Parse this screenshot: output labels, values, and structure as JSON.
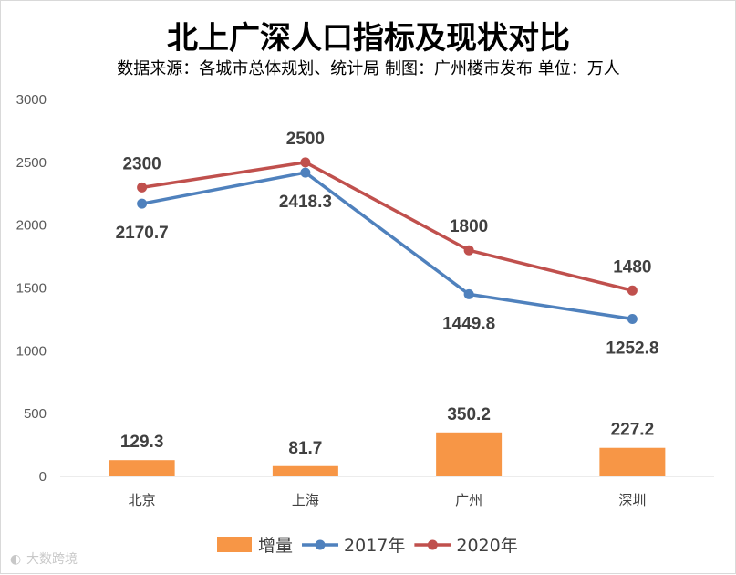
{
  "chart_data": {
    "type": "bar+line",
    "title": "北上广深人口指标及现状对比",
    "subtitle": "数据来源：各城市总体规划、统计局 制图：广州楼市发布 单位：万人",
    "categories": [
      "北京",
      "上海",
      "广州",
      "深圳"
    ],
    "ylim": [
      0,
      3000
    ],
    "yticks": [
      0,
      500,
      1000,
      1500,
      2000,
      2500,
      3000
    ],
    "grid": false,
    "legend_position": "bottom",
    "series": [
      {
        "name": "增量",
        "kind": "bar",
        "color": "#F79646",
        "values": [
          129.3,
          81.7,
          350.2,
          227.2
        ],
        "labels": [
          "129.3",
          "81.7",
          "350.2",
          "227.2"
        ]
      },
      {
        "name": "2017年",
        "kind": "line",
        "color": "#4F81BD",
        "values": [
          2170.7,
          2418.3,
          1449.8,
          1252.8
        ],
        "labels": [
          "2170.7",
          "2418.3",
          "1449.8",
          "1252.8"
        ]
      },
      {
        "name": "2020年",
        "kind": "line",
        "color": "#C0504D",
        "values": [
          2300,
          2500,
          1800,
          1480
        ],
        "labels": [
          "2300",
          "2500",
          "1800",
          "1480"
        ]
      }
    ]
  },
  "watermark": "大数跨境"
}
